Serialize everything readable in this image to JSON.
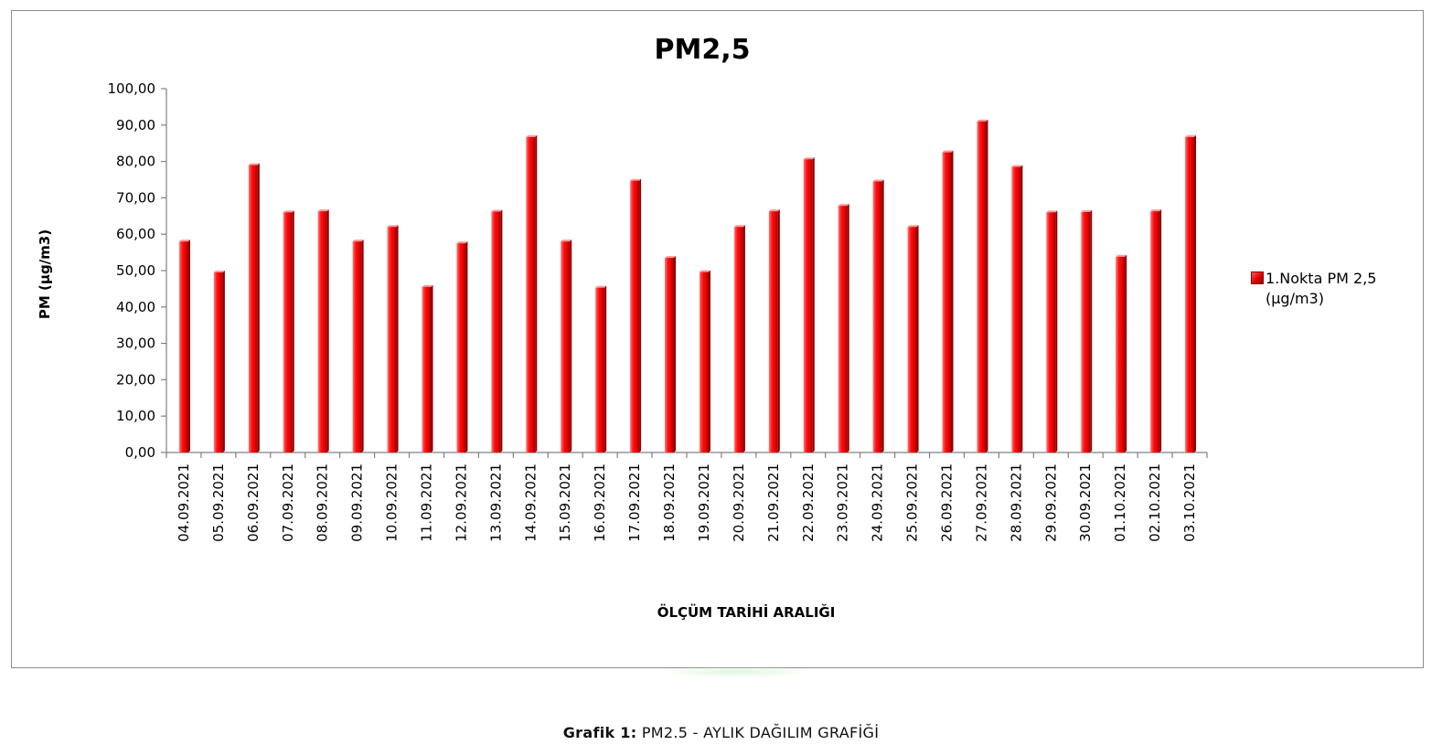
{
  "chart_data": {
    "type": "bar",
    "title": "PM2,5",
    "xlabel": "ÖLÇÜM TARİHİ ARALIĞI",
    "ylabel": "PM (µg/m3)",
    "ylim": [
      0,
      100
    ],
    "yticks": [
      "0,00",
      "10,00",
      "20,00",
      "30,00",
      "40,00",
      "50,00",
      "60,00",
      "70,00",
      "80,00",
      "90,00",
      "100,00"
    ],
    "categories": [
      "04.09.2021",
      "05.09.2021",
      "06.09.2021",
      "07.09.2021",
      "08.09.2021",
      "09.09.2021",
      "10.09.2021",
      "11.09.2021",
      "12.09.2021",
      "13.09.2021",
      "14.09.2021",
      "15.09.2021",
      "16.09.2021",
      "17.09.2021",
      "18.09.2021",
      "19.09.2021",
      "20.09.2021",
      "21.09.2021",
      "22.09.2021",
      "23.09.2021",
      "24.09.2021",
      "25.09.2021",
      "26.09.2021",
      "27.09.2021",
      "28.09.2021",
      "29.09.2021",
      "30.09.2021",
      "01.10.2021",
      "02.10.2021",
      "03.10.2021"
    ],
    "series": [
      {
        "name": "1.Nokta PM 2,5 (µg/m3)",
        "values": [
          58,
          49.5,
          79,
          66,
          66.3,
          58,
          62,
          45.5,
          57.5,
          66.2,
          86.7,
          58,
          45.3,
          74.7,
          53.5,
          49.6,
          62,
          66.3,
          80.6,
          67.8,
          74.5,
          62,
          82.5,
          91,
          78.5,
          66,
          66.1,
          53.8,
          66.3,
          86.7
        ]
      }
    ],
    "grid": false,
    "legend_position": "right",
    "colors": {
      "bar": "#e60000",
      "bar_dark": "#8b0000",
      "bar_light": "#ff6060"
    }
  },
  "legend": {
    "line1": "1.Nokta PM 2,5",
    "line2": "(µg/m3)"
  },
  "caption": {
    "label": "Grafik 1:",
    "text": "PM2.5 - AYLIK DAĞILIM GRAFİĞİ"
  }
}
